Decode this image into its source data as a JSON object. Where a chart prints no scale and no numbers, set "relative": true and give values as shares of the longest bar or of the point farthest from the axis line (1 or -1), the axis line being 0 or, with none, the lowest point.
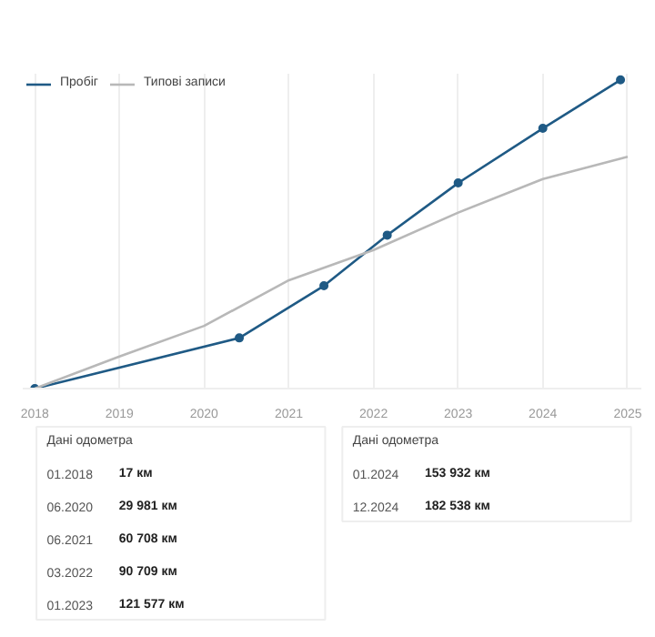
{
  "chart_data": {
    "type": "line",
    "relative": true,
    "x": [
      "2018-01",
      "2020-06",
      "2021-06",
      "2022-03",
      "2023-01",
      "2024-01",
      "2024-12"
    ],
    "xlim": [
      "2017-11-10",
      "2025-03-01"
    ],
    "xticks": [
      {
        "value": "2018-01-01",
        "label": "2018"
      },
      {
        "value": "2019-01-01",
        "label": "2019"
      },
      {
        "value": "2020-01-01",
        "label": "2020"
      },
      {
        "value": "2021-01-01",
        "label": "2021"
      },
      {
        "value": "2022-01-01",
        "label": "2022"
      },
      {
        "value": "2023-01-01",
        "label": "2023"
      },
      {
        "value": "2024-01-01",
        "label": "2024"
      },
      {
        "value": "2025-01-01",
        "label": "2025"
      }
    ],
    "series": [
      {
        "name": "Пробіг",
        "color": "#1f5a85",
        "marker": "circle",
        "values": [
          0.0001,
          0.164,
          0.333,
          0.497,
          0.666,
          0.843,
          1
        ]
      },
      {
        "name": "Типові записи",
        "color": "#b8b8b8",
        "marker": "none",
        "x": [
          "2018-01",
          "2019-01",
          "2020-01",
          "2021-01",
          "2022-01",
          "2023-01",
          "2024-01",
          "2025-01"
        ],
        "values": [
          0,
          0.104,
          0.203,
          0.351,
          0.449,
          0.57,
          0.679,
          0.751
        ]
      }
    ],
    "tick_labels": "x",
    "grid": "x",
    "legend": "top left",
    "annotations": [
      "Дані одометра",
      "01.2018",
      "17 км",
      "06.2020",
      "29 981 км",
      "06.2021",
      "60 708 км",
      "03.2022",
      "90 709 км",
      "01.2023",
      "121 577 км",
      "Дані одометра",
      "01.2024",
      "153 932 км",
      "12.2024",
      "182 538 км"
    ]
  }
}
